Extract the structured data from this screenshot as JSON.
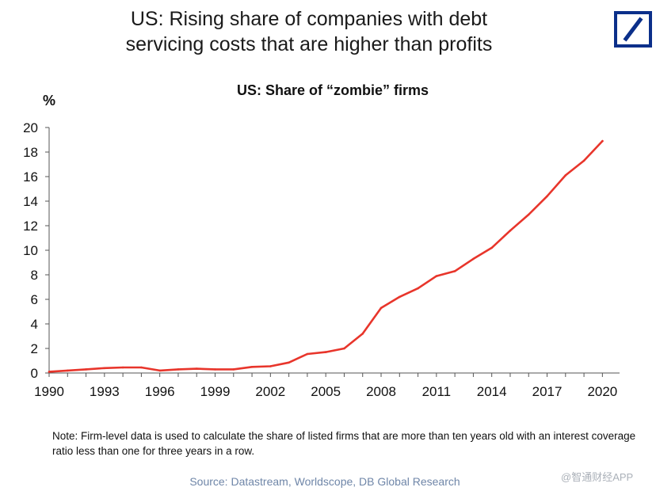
{
  "headline": {
    "line1": "US: Rising share of companies with debt",
    "line2": "servicing costs that are higher than profits"
  },
  "brand": {
    "logo_icon": "deutsche-bank-slash-logo",
    "color": "#0b2f8a"
  },
  "chart_data": {
    "type": "line",
    "title": "US: Share of “zombie” firms",
    "ylabel": "%",
    "xlabel": "",
    "xlim": [
      1990,
      2020.5
    ],
    "ylim": [
      0,
      20
    ],
    "x_ticks": [
      1990,
      1993,
      1996,
      1999,
      2002,
      2005,
      2008,
      2011,
      2014,
      2017,
      2020
    ],
    "y_ticks": [
      0,
      2,
      4,
      6,
      8,
      10,
      12,
      14,
      16,
      18,
      20
    ],
    "grid": false,
    "series_color": "#e8352b",
    "series": [
      {
        "x": [
          1990,
          1991,
          1992,
          1993,
          1994,
          1995,
          1996,
          1997,
          1998,
          1999,
          2000,
          2001,
          2002,
          2003,
          2004,
          2005,
          2006,
          2007,
          2008,
          2009,
          2010,
          2011,
          2012,
          2013,
          2014,
          2015,
          2016,
          2017,
          2018,
          2019,
          2020
        ],
        "values": [
          0.1,
          0.2,
          0.3,
          0.4,
          0.45,
          0.45,
          0.2,
          0.3,
          0.35,
          0.3,
          0.3,
          0.5,
          0.55,
          0.85,
          1.55,
          1.7,
          2.0,
          3.2,
          5.3,
          6.2,
          6.9,
          7.9,
          8.3,
          9.3,
          10.2,
          11.6,
          12.9,
          14.4,
          16.1,
          17.3,
          18.9
        ]
      }
    ]
  },
  "note": "Note: Firm-level data is used to calculate the share of listed firms that are more than ten years old with an interest coverage ratio less than one for three years in a row.",
  "source": "Source: Datastream, Worldscope, DB Global Research",
  "watermark": "@智通财经APP"
}
